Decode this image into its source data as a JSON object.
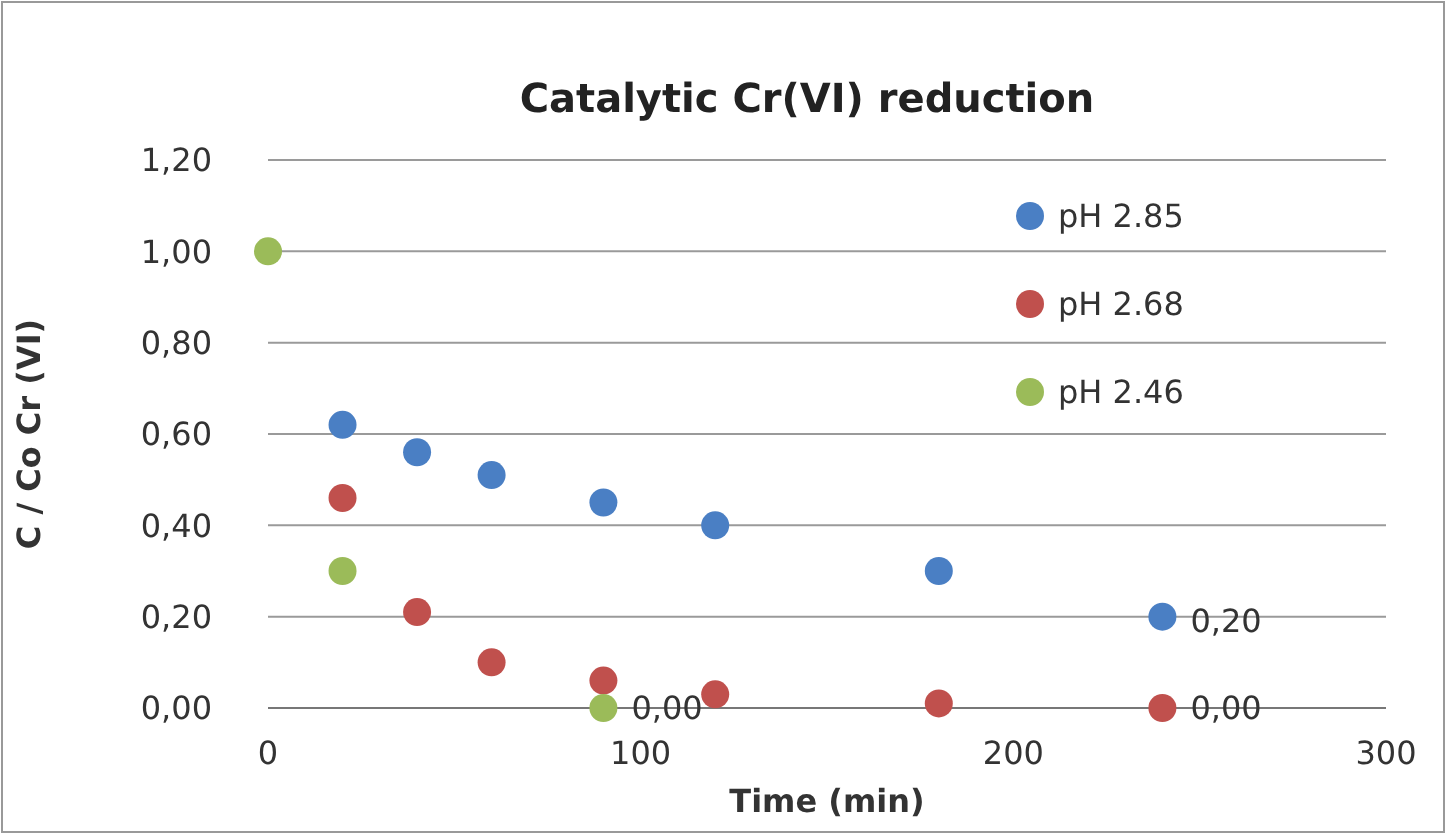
{
  "chart_data": {
    "type": "scatter",
    "title": "Catalytic Cr(VI) reduction",
    "xlabel": "Time (min)",
    "ylabel": "C / Co Cr (VI)",
    "xlim": [
      0,
      300
    ],
    "xticks": [
      0,
      100,
      200,
      300
    ],
    "ylim": [
      0,
      1.2
    ],
    "yticks": [
      {
        "value": 0,
        "label": "0,00"
      },
      {
        "value": 0.2,
        "label": "0,20"
      },
      {
        "value": 0.4,
        "label": "0,40"
      },
      {
        "value": 0.6,
        "label": "0,60"
      },
      {
        "value": 0.8,
        "label": "0,80"
      },
      {
        "value": 1,
        "label": "1,00"
      },
      {
        "value": 1.2,
        "label": "1,20"
      }
    ],
    "grid": "y",
    "legend": "top right",
    "marker": "circle",
    "series": [
      {
        "name": "pH 2.85",
        "color": "#4a7fc4",
        "x": [
          20,
          40,
          60,
          90,
          120,
          180,
          240
        ],
        "values": [
          0.62,
          0.56,
          0.51,
          0.45,
          0.4,
          0.3,
          0.2
        ],
        "value_labels": [
          null,
          null,
          null,
          null,
          null,
          null,
          "0,20"
        ]
      },
      {
        "name": "pH 2.68",
        "color": "#c0504d",
        "x": [
          20,
          40,
          60,
          90,
          120,
          180,
          240
        ],
        "values": [
          0.46,
          0.21,
          0.1,
          0.06,
          0.03,
          0.01,
          0.0
        ],
        "value_labels": [
          null,
          null,
          null,
          null,
          null,
          null,
          "0,00"
        ]
      },
      {
        "name": "pH 2.46",
        "color": "#9bbb59",
        "x": [
          0,
          20,
          90
        ],
        "values": [
          1.0,
          0.3,
          0.0
        ],
        "value_labels": [
          null,
          null,
          "0,00"
        ]
      }
    ]
  }
}
